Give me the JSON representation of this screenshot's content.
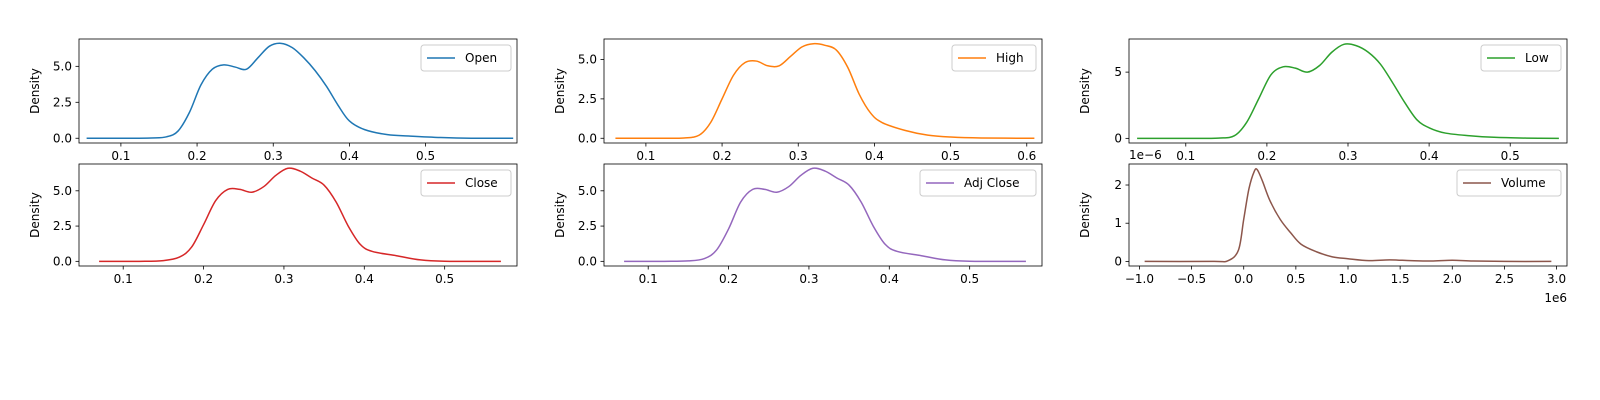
{
  "chart_data": [
    {
      "type": "line",
      "ylabel": "Density",
      "xlim": [
        0.045,
        0.62
      ],
      "ylim": [
        -0.33,
        6.9
      ],
      "xticks": [
        {
          "v": 0.1,
          "label": "0.1"
        },
        {
          "v": 0.2,
          "label": "0.2"
        },
        {
          "v": 0.3,
          "label": "0.3"
        },
        {
          "v": 0.4,
          "label": "0.4"
        },
        {
          "v": 0.5,
          "label": "0.5"
        }
      ],
      "yticks": [
        {
          "v": 0,
          "label": "0.0"
        },
        {
          "v": 2.5,
          "label": "2.5"
        },
        {
          "v": 5,
          "label": "5.0"
        }
      ],
      "legend_position": "upper-right",
      "series": [
        {
          "name": "Open",
          "color": "#1f77b4",
          "x": [
            0.055,
            0.1,
            0.14,
            0.16,
            0.175,
            0.19,
            0.205,
            0.22,
            0.235,
            0.25,
            0.265,
            0.28,
            0.295,
            0.31,
            0.325,
            0.34,
            0.355,
            0.37,
            0.385,
            0.4,
            0.42,
            0.45,
            0.48,
            0.52,
            0.56,
            0.615
          ],
          "y": [
            0,
            0,
            0.02,
            0.1,
            0.5,
            1.8,
            3.7,
            4.8,
            5.1,
            4.95,
            4.8,
            5.6,
            6.4,
            6.6,
            6.3,
            5.6,
            4.7,
            3.6,
            2.3,
            1.2,
            0.6,
            0.25,
            0.15,
            0.05,
            0,
            0
          ]
        }
      ]
    },
    {
      "type": "line",
      "ylabel": "Density",
      "xlim": [
        0.045,
        0.62
      ],
      "ylim": [
        -0.3,
        6.3
      ],
      "xticks": [
        {
          "v": 0.1,
          "label": "0.1"
        },
        {
          "v": 0.2,
          "label": "0.2"
        },
        {
          "v": 0.3,
          "label": "0.3"
        },
        {
          "v": 0.4,
          "label": "0.4"
        },
        {
          "v": 0.5,
          "label": "0.5"
        },
        {
          "v": 0.6,
          "label": "0.6"
        }
      ],
      "yticks": [
        {
          "v": 0,
          "label": "0.0"
        },
        {
          "v": 2.5,
          "label": "2.5"
        },
        {
          "v": 5,
          "label": "5.0"
        }
      ],
      "legend_position": "upper-right",
      "series": [
        {
          "name": "High",
          "color": "#ff7f0e",
          "x": [
            0.06,
            0.12,
            0.15,
            0.17,
            0.185,
            0.2,
            0.215,
            0.23,
            0.245,
            0.26,
            0.275,
            0.29,
            0.305,
            0.32,
            0.335,
            0.35,
            0.365,
            0.38,
            0.395,
            0.41,
            0.44,
            0.47,
            0.5,
            0.54,
            0.61
          ],
          "y": [
            0,
            0,
            0.02,
            0.2,
            1.0,
            2.5,
            4.0,
            4.8,
            4.9,
            4.6,
            4.6,
            5.2,
            5.8,
            6.0,
            5.9,
            5.6,
            4.5,
            2.8,
            1.6,
            1.0,
            0.5,
            0.2,
            0.08,
            0.02,
            0
          ]
        }
      ]
    },
    {
      "type": "line",
      "ylabel": "Density",
      "xlim": [
        0.03,
        0.57
      ],
      "ylim": [
        -0.35,
        7.5
      ],
      "xticks": [
        {
          "v": 0.1,
          "label": "0.1"
        },
        {
          "v": 0.2,
          "label": "0.2"
        },
        {
          "v": 0.3,
          "label": "0.3"
        },
        {
          "v": 0.4,
          "label": "0.4"
        },
        {
          "v": 0.5,
          "label": "0.5"
        }
      ],
      "yticks": [
        {
          "v": 0,
          "label": "0"
        },
        {
          "v": 5,
          "label": "5"
        }
      ],
      "legend_position": "upper-right",
      "series": [
        {
          "name": "Low",
          "color": "#2ca02c",
          "x": [
            0.04,
            0.1,
            0.14,
            0.16,
            0.175,
            0.19,
            0.205,
            0.22,
            0.235,
            0.25,
            0.265,
            0.28,
            0.295,
            0.31,
            0.325,
            0.34,
            0.355,
            0.37,
            0.385,
            0.4,
            0.42,
            0.45,
            0.48,
            0.52,
            0.56
          ],
          "y": [
            0,
            0,
            0.02,
            0.2,
            1.2,
            3.0,
            4.8,
            5.4,
            5.3,
            5.0,
            5.5,
            6.5,
            7.1,
            7.0,
            6.5,
            5.6,
            4.2,
            2.7,
            1.4,
            0.8,
            0.4,
            0.2,
            0.08,
            0.02,
            0
          ]
        }
      ]
    },
    {
      "type": "line",
      "ylabel": "Density",
      "xlim": [
        0.045,
        0.59
      ],
      "ylim": [
        -0.33,
        6.9
      ],
      "xticks": [
        {
          "v": 0.1,
          "label": "0.1"
        },
        {
          "v": 0.2,
          "label": "0.2"
        },
        {
          "v": 0.3,
          "label": "0.3"
        },
        {
          "v": 0.4,
          "label": "0.4"
        },
        {
          "v": 0.5,
          "label": "0.5"
        }
      ],
      "yticks": [
        {
          "v": 0,
          "label": "0.0"
        },
        {
          "v": 2.5,
          "label": "2.5"
        },
        {
          "v": 5,
          "label": "5.0"
        }
      ],
      "legend_position": "upper-right",
      "series": [
        {
          "name": "Close",
          "color": "#d62728",
          "x": [
            0.07,
            0.12,
            0.15,
            0.17,
            0.185,
            0.2,
            0.215,
            0.23,
            0.245,
            0.26,
            0.275,
            0.29,
            0.305,
            0.32,
            0.335,
            0.35,
            0.365,
            0.38,
            0.395,
            0.41,
            0.44,
            0.47,
            0.5,
            0.57
          ],
          "y": [
            0,
            0,
            0.05,
            0.3,
            1.0,
            2.6,
            4.3,
            5.1,
            5.1,
            4.9,
            5.3,
            6.1,
            6.6,
            6.4,
            5.9,
            5.4,
            4.2,
            2.5,
            1.2,
            0.7,
            0.4,
            0.1,
            0.01,
            0
          ]
        }
      ]
    },
    {
      "type": "line",
      "ylabel": "Density",
      "xlim": [
        0.045,
        0.59
      ],
      "ylim": [
        -0.33,
        6.9
      ],
      "xticks": [
        {
          "v": 0.1,
          "label": "0.1"
        },
        {
          "v": 0.2,
          "label": "0.2"
        },
        {
          "v": 0.3,
          "label": "0.3"
        },
        {
          "v": 0.4,
          "label": "0.4"
        },
        {
          "v": 0.5,
          "label": "0.5"
        }
      ],
      "yticks": [
        {
          "v": 0,
          "label": "0.0"
        },
        {
          "v": 2.5,
          "label": "2.5"
        },
        {
          "v": 5,
          "label": "5.0"
        }
      ],
      "legend_position": "upper-right",
      "series": [
        {
          "name": "Adj Close",
          "color": "#9467bd",
          "x": [
            0.07,
            0.12,
            0.15,
            0.17,
            0.185,
            0.2,
            0.215,
            0.23,
            0.245,
            0.26,
            0.275,
            0.29,
            0.305,
            0.32,
            0.335,
            0.35,
            0.365,
            0.38,
            0.395,
            0.41,
            0.44,
            0.47,
            0.5,
            0.57
          ],
          "y": [
            0,
            0,
            0.03,
            0.2,
            0.8,
            2.3,
            4.2,
            5.1,
            5.1,
            4.9,
            5.3,
            6.1,
            6.6,
            6.4,
            5.9,
            5.4,
            4.2,
            2.5,
            1.2,
            0.7,
            0.4,
            0.1,
            0.01,
            0
          ]
        }
      ]
    },
    {
      "type": "line",
      "ylabel": "Density",
      "offset_label": "1e−6",
      "x_scale_label": "1e6",
      "xlim": [
        -1.1,
        3.1
      ],
      "ylim": [
        -0.12,
        2.55
      ],
      "xticks": [
        {
          "v": -1.0,
          "label": "−1.0"
        },
        {
          "v": -0.5,
          "label": "−0.5"
        },
        {
          "v": 0.0,
          "label": "0.0"
        },
        {
          "v": 0.5,
          "label": "0.5"
        },
        {
          "v": 1.0,
          "label": "1.0"
        },
        {
          "v": 1.5,
          "label": "1.5"
        },
        {
          "v": 2.0,
          "label": "2.0"
        },
        {
          "v": 2.5,
          "label": "2.5"
        },
        {
          "v": 3.0,
          "label": "3.0"
        }
      ],
      "yticks": [
        {
          "v": 0,
          "label": "0"
        },
        {
          "v": 1,
          "label": "1"
        },
        {
          "v": 2,
          "label": "2"
        }
      ],
      "legend_position": "upper-right",
      "series": [
        {
          "name": "Volume",
          "color": "#8c564b",
          "x": [
            -0.95,
            -0.3,
            -0.15,
            -0.05,
            0.0,
            0.05,
            0.1,
            0.13,
            0.18,
            0.25,
            0.35,
            0.45,
            0.55,
            0.7,
            0.85,
            1.0,
            1.2,
            1.4,
            1.6,
            1.8,
            2.0,
            2.2,
            2.5,
            2.95
          ],
          "y": [
            0,
            0,
            0.02,
            0.3,
            1.1,
            1.9,
            2.35,
            2.4,
            2.1,
            1.6,
            1.1,
            0.75,
            0.45,
            0.25,
            0.12,
            0.07,
            0.02,
            0.04,
            0.02,
            0.01,
            0.03,
            0.01,
            0,
            0
          ]
        }
      ]
    }
  ]
}
